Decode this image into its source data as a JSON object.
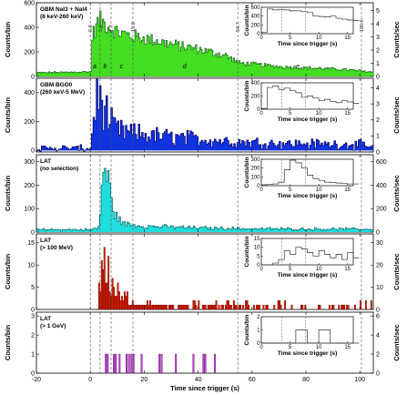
{
  "figure": {
    "xlabel": "Time since trigger (s)",
    "xlim": [
      -20,
      105
    ],
    "xticks": [
      -20,
      0,
      20,
      40,
      60,
      80,
      100
    ],
    "interval_lines": [
      0,
      3.6,
      7.7,
      15.8,
      54.7,
      100.6
    ],
    "interval_labels": [
      "0.0",
      "3.6",
      "7.7",
      "15.8",
      "54.7",
      "100.6"
    ],
    "segment_labels": [
      {
        "label": "a",
        "x": 1.6
      },
      {
        "label": "b",
        "x": 5.5
      },
      {
        "label": "c",
        "x": 11.5
      },
      {
        "label": "d",
        "x": 35
      },
      {
        "label": "e",
        "x": 77
      }
    ],
    "inset_xlabel": "Time since trigger (s)",
    "inset_ylabel": "Counts/bin",
    "inset_xticks": [
      0,
      5,
      10,
      15
    ],
    "inset_lines": [
      3.6,
      7.7
    ]
  },
  "chart_data": [
    {
      "type": "bar",
      "title": "GBM NaI3 + NaI4",
      "subtitle": "(8 keV-260 keV)",
      "ylabel": "Counts/bin",
      "ylabel_right": "Counts/sec",
      "color": "#44dd22",
      "edge": "#116611",
      "ylim": [
        0,
        600
      ],
      "yticks": [
        0,
        200,
        400,
        600
      ],
      "yticks_right": [
        0,
        1,
        2,
        3,
        4,
        5
      ],
      "yright_max": 5.6,
      "background": 40,
      "profile": [
        {
          "x": -20,
          "y": 30
        },
        {
          "x": 0,
          "y": 38
        },
        {
          "x": 0.5,
          "y": 330
        },
        {
          "x": 3,
          "y": 460
        },
        {
          "x": 5,
          "y": 430
        },
        {
          "x": 7,
          "y": 400
        },
        {
          "x": 10,
          "y": 360
        },
        {
          "x": 15,
          "y": 330
        },
        {
          "x": 20,
          "y": 310
        },
        {
          "x": 30,
          "y": 260
        },
        {
          "x": 40,
          "y": 220
        },
        {
          "x": 50,
          "y": 170
        },
        {
          "x": 55,
          "y": 110
        },
        {
          "x": 70,
          "y": 80
        },
        {
          "x": 80,
          "y": 70
        },
        {
          "x": 95,
          "y": 55
        },
        {
          "x": 100,
          "y": 45
        },
        {
          "x": 105,
          "y": 35
        }
      ],
      "inset": {
        "ylim": [
          0,
          600
        ],
        "yticks": [
          0,
          200,
          400,
          600
        ],
        "values": [
          30,
          560,
          540,
          550,
          540,
          520,
          520,
          500,
          480,
          400,
          390,
          380,
          400,
          350,
          330,
          310,
          300
        ]
      }
    },
    {
      "type": "bar",
      "title": "GBM BGO0",
      "subtitle": "(260 keV-5 MeV)",
      "ylabel": "Counts/bin",
      "ylabel_right": "Counts/sec",
      "color": "#1133dd",
      "edge": "#000066",
      "ylim": [
        -10,
        500
      ],
      "yticks": [
        0,
        200,
        400
      ],
      "yticks_right": [
        0,
        1,
        2,
        3,
        4
      ],
      "yright_max": 4.6,
      "background": 20,
      "profile": [
        {
          "x": -20,
          "y": 15
        },
        {
          "x": 0,
          "y": 15
        },
        {
          "x": 1,
          "y": 250
        },
        {
          "x": 3,
          "y": 380
        },
        {
          "x": 5,
          "y": 300
        },
        {
          "x": 7,
          "y": 190
        },
        {
          "x": 10,
          "y": 140
        },
        {
          "x": 15,
          "y": 120
        },
        {
          "x": 25,
          "y": 100
        },
        {
          "x": 40,
          "y": 80
        },
        {
          "x": 55,
          "y": 60
        },
        {
          "x": 70,
          "y": 50
        },
        {
          "x": 100,
          "y": 40
        },
        {
          "x": 105,
          "y": 30
        }
      ],
      "inset": {
        "ylim": [
          0,
          400
        ],
        "yticks": [
          0,
          200,
          400
        ],
        "values": [
          10,
          330,
          350,
          300,
          320,
          280,
          250,
          180,
          200,
          170,
          130,
          150,
          120,
          100,
          130,
          110,
          90
        ]
      }
    },
    {
      "type": "bar",
      "title": "LAT",
      "subtitle": "(no selection)",
      "ylabel": "Counts/bin",
      "ylabel_right": "Counts/sec",
      "color": "#22dddd",
      "edge": "#006666",
      "ylim": [
        0,
        330
      ],
      "yticks": [
        0,
        100,
        200,
        300
      ],
      "yticks_right": [
        0,
        200,
        400,
        600
      ],
      "yright_max": 660,
      "background": 12,
      "profile": [
        {
          "x": -20,
          "y": 10
        },
        {
          "x": 0,
          "y": 10
        },
        {
          "x": 3,
          "y": 20
        },
        {
          "x": 4.5,
          "y": 280
        },
        {
          "x": 6,
          "y": 240
        },
        {
          "x": 7.5,
          "y": 140
        },
        {
          "x": 9,
          "y": 70
        },
        {
          "x": 12,
          "y": 35
        },
        {
          "x": 20,
          "y": 25
        },
        {
          "x": 40,
          "y": 18
        },
        {
          "x": 60,
          "y": 14
        },
        {
          "x": 105,
          "y": 12
        }
      ],
      "inset": {
        "ylim": [
          0,
          300
        ],
        "yticks": [
          0,
          100,
          200,
          300
        ],
        "values": [
          10,
          15,
          20,
          40,
          180,
          290,
          260,
          200,
          120,
          80,
          60,
          40,
          35,
          30,
          25,
          20,
          20
        ]
      }
    },
    {
      "type": "bar",
      "title": "LAT",
      "subtitle": "(> 100 MeV)",
      "ylabel": "Counts/bin",
      "ylabel_right": "Counts/sec",
      "color": "#dd2200",
      "edge": "#660000",
      "ylim": [
        0,
        17
      ],
      "yticks": [
        0,
        5,
        10,
        15
      ],
      "yticks_right": [
        0,
        10,
        20,
        30
      ],
      "yright_max": 34,
      "background": 0,
      "profile": [
        {
          "x": -20,
          "y": 0
        },
        {
          "x": 2.5,
          "y": 0
        },
        {
          "x": 4,
          "y": 11
        },
        {
          "x": 6,
          "y": 9
        },
        {
          "x": 9,
          "y": 5
        },
        {
          "x": 14,
          "y": 3
        },
        {
          "x": 25,
          "y": 2
        },
        {
          "x": 40,
          "y": 1.2
        },
        {
          "x": 60,
          "y": 0.8
        },
        {
          "x": 105,
          "y": 0.5
        }
      ],
      "inset": {
        "ylim": [
          0,
          15
        ],
        "yticks": [
          0,
          5,
          10,
          15
        ],
        "values": [
          0,
          0,
          1,
          3,
          8,
          6,
          10,
          9,
          7,
          5,
          8,
          6,
          4,
          6,
          3,
          7,
          4
        ]
      }
    },
    {
      "type": "bar",
      "title": "LAT",
      "subtitle": "(> 1 GeV)",
      "ylabel": "Counts/bin",
      "ylabel_right": "Counts/sec",
      "color": "#cc44dd",
      "edge": "#550066",
      "ylim": [
        0,
        3.2
      ],
      "yticks": [
        0,
        1,
        2,
        3
      ],
      "yticks_right": [
        0,
        2,
        4,
        6
      ],
      "yright_max": 6.4,
      "background": 0,
      "events": [
        5.5,
        6.2,
        8.5,
        9.2,
        10.6,
        13.2,
        14.1,
        15.0,
        15.8,
        18.8,
        25.4,
        26.2,
        31.5,
        38.0,
        41.7,
        42.4,
        46.0
      ],
      "inset": {
        "ylim": [
          0,
          2
        ],
        "yticks": [
          0,
          1,
          2
        ],
        "values": [
          0,
          0,
          0,
          0,
          0,
          0,
          1,
          1,
          0,
          0,
          1,
          1,
          0,
          0,
          0,
          0,
          0
        ]
      }
    }
  ]
}
